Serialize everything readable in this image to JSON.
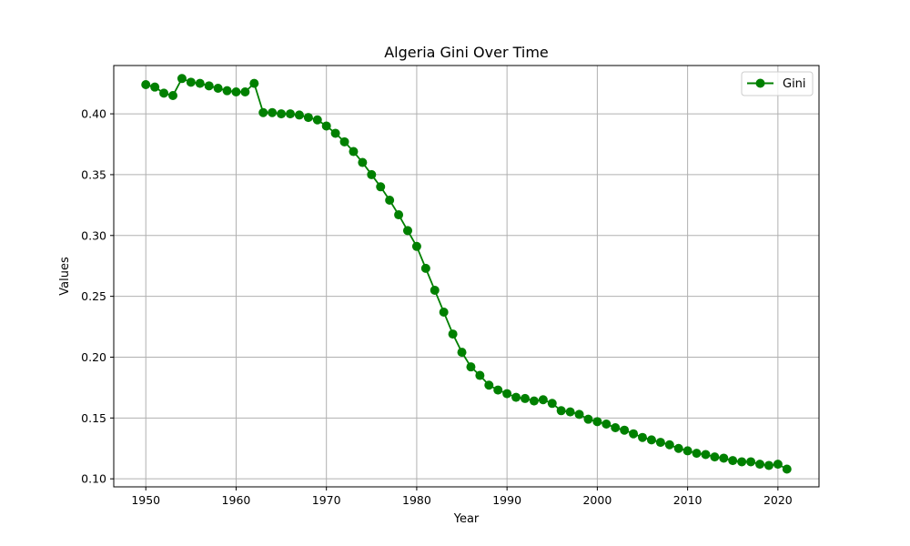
{
  "chart_data": {
    "type": "line",
    "title": "Algeria Gini Over Time",
    "xlabel": "Year",
    "ylabel": "Values",
    "xlim": [
      1946.45,
      2024.55
    ],
    "ylim": [
      0.0934,
      0.4397
    ],
    "x_ticks": [
      1950,
      1960,
      1970,
      1980,
      1990,
      2000,
      2010,
      2020
    ],
    "x_tick_labels": [
      "1950",
      "1960",
      "1970",
      "1980",
      "1990",
      "2000",
      "2010",
      "2020"
    ],
    "y_ticks": [
      0.1,
      0.15,
      0.2,
      0.25,
      0.3,
      0.35,
      0.4
    ],
    "y_tick_labels": [
      "0.10",
      "0.15",
      "0.20",
      "0.25",
      "0.30",
      "0.35",
      "0.40"
    ],
    "grid": true,
    "legend_position": "top-right",
    "series": [
      {
        "name": "Gini",
        "color": "#008000",
        "marker": "circle",
        "x": [
          1950,
          1951,
          1952,
          1953,
          1954,
          1955,
          1956,
          1957,
          1958,
          1959,
          1960,
          1961,
          1962,
          1963,
          1964,
          1965,
          1966,
          1967,
          1968,
          1969,
          1970,
          1971,
          1972,
          1973,
          1974,
          1975,
          1976,
          1977,
          1978,
          1979,
          1980,
          1981,
          1982,
          1983,
          1984,
          1985,
          1986,
          1987,
          1988,
          1989,
          1990,
          1991,
          1992,
          1993,
          1994,
          1995,
          1996,
          1997,
          1998,
          1999,
          2000,
          2001,
          2002,
          2003,
          2004,
          2005,
          2006,
          2007,
          2008,
          2009,
          2010,
          2011,
          2012,
          2013,
          2014,
          2015,
          2016,
          2017,
          2018,
          2019,
          2020,
          2021
        ],
        "values": [
          0.424,
          0.422,
          0.417,
          0.415,
          0.429,
          0.426,
          0.425,
          0.423,
          0.421,
          0.419,
          0.418,
          0.418,
          0.425,
          0.401,
          0.401,
          0.4,
          0.4,
          0.399,
          0.397,
          0.395,
          0.39,
          0.384,
          0.377,
          0.369,
          0.36,
          0.35,
          0.34,
          0.329,
          0.317,
          0.304,
          0.291,
          0.273,
          0.255,
          0.237,
          0.219,
          0.204,
          0.192,
          0.185,
          0.177,
          0.173,
          0.17,
          0.167,
          0.166,
          0.164,
          0.165,
          0.162,
          0.156,
          0.155,
          0.153,
          0.149,
          0.147,
          0.145,
          0.142,
          0.14,
          0.137,
          0.134,
          0.132,
          0.13,
          0.128,
          0.125,
          0.123,
          0.121,
          0.12,
          0.118,
          0.117,
          0.115,
          0.114,
          0.114,
          0.112,
          0.111,
          0.112,
          0.108
        ]
      }
    ]
  }
}
